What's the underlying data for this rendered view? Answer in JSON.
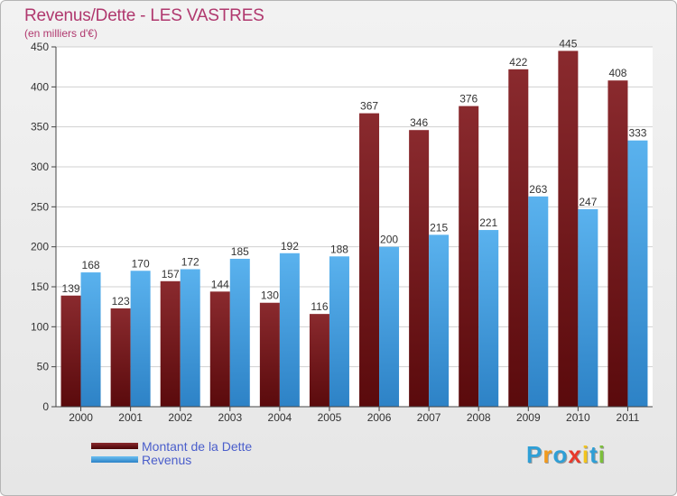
{
  "title": "Revenus/Dette - LES VASTRES",
  "subtitle": "(en milliers d'€)",
  "logo": {
    "text": "Proxiti",
    "letters": [
      {
        "ch": "P",
        "color": "#2f9fd6"
      },
      {
        "ch": "r",
        "color": "#f29a1d"
      },
      {
        "ch": "o",
        "color": "#2f9fd6"
      },
      {
        "ch": "x",
        "color": "#e8392b"
      },
      {
        "ch": "i",
        "color": "#f2c41d"
      },
      {
        "ch": "t",
        "color": "#2f9fd6"
      },
      {
        "ch": "i",
        "color": "#7cbf3b"
      }
    ]
  },
  "chart_data": {
    "type": "bar",
    "title": "Revenus/Dette - LES VASTRES",
    "subtitle": "(en milliers d'€)",
    "categories": [
      "2000",
      "2001",
      "2002",
      "2003",
      "2004",
      "2005",
      "2006",
      "2007",
      "2008",
      "2009",
      "2010",
      "2011"
    ],
    "series": [
      {
        "name": "Montant de la Dette",
        "color": "#7a1416",
        "values": [
          139,
          123,
          157,
          144,
          130,
          116,
          367,
          346,
          376,
          422,
          445,
          408
        ]
      },
      {
        "name": "Revenus",
        "color": "#4aa3e6",
        "values": [
          168,
          170,
          172,
          185,
          192,
          188,
          200,
          215,
          221,
          263,
          247,
          333
        ]
      }
    ],
    "ylim": [
      0,
      450
    ],
    "yticks": [
      0,
      50,
      100,
      150,
      200,
      250,
      300,
      350,
      400,
      450
    ],
    "grid": true,
    "legend": "bottom-left"
  }
}
